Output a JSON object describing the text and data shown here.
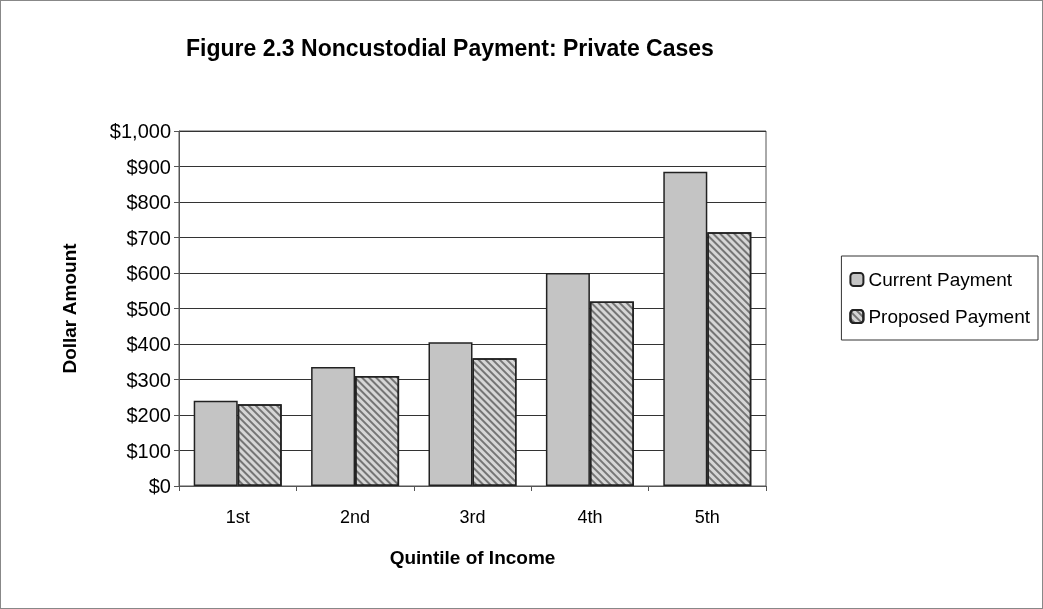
{
  "chart_data": {
    "type": "bar",
    "title": "Figure 2.3 Noncustodial Payment: Private Cases",
    "xlabel": "Quintile of Income",
    "ylabel": "Dollar Amount",
    "categories": [
      "1st",
      "2nd",
      "3rd",
      "4th",
      "5th"
    ],
    "series": [
      {
        "name": "Current Payment",
        "color": "#c4c4c4",
        "values": [
          240,
          335,
          405,
          600,
          885
        ]
      },
      {
        "name": "Proposed Payment",
        "color": "#d6d6d6",
        "values": [
          230,
          310,
          360,
          520,
          715
        ]
      }
    ],
    "ylim": [
      0,
      1000
    ],
    "yticks": [
      {
        "value": 0,
        "label": "$0"
      },
      {
        "value": 100,
        "label": "$100"
      },
      {
        "value": 200,
        "label": "$200"
      },
      {
        "value": 300,
        "label": "$300"
      },
      {
        "value": 400,
        "label": "$400"
      },
      {
        "value": 500,
        "label": "$500"
      },
      {
        "value": 600,
        "label": "$600"
      },
      {
        "value": 700,
        "label": "$700"
      },
      {
        "value": 800,
        "label": "$800"
      },
      {
        "value": 900,
        "label": "$900"
      },
      {
        "value": 1000,
        "label": "$1,000"
      }
    ],
    "grid": "y",
    "legend": "right"
  }
}
